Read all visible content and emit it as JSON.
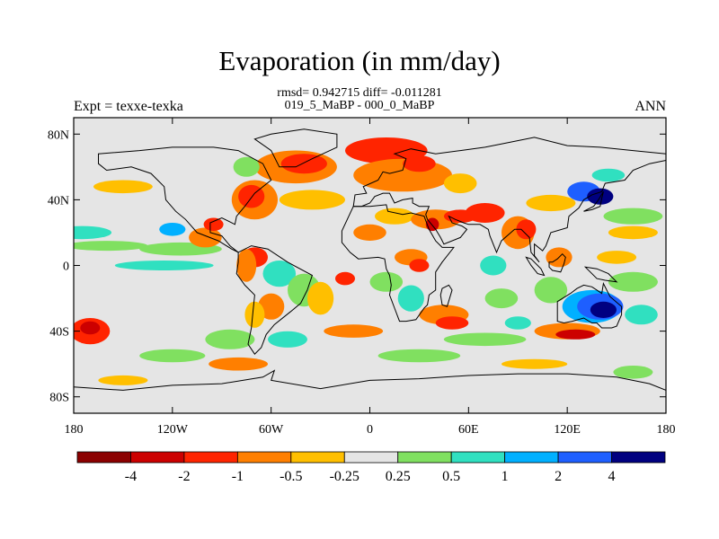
{
  "title": "Evaporation (in mm/day)",
  "stats_line": "rmsd= 0.942715 diff= -0.011281",
  "subtitle": "019_5_MaBP - 000_0_MaBP",
  "left_label": "Expt = texxe-texka",
  "right_label": "ANN",
  "chart_data": {
    "type": "heatmap",
    "projection": "cylindrical-equidistant",
    "xlim": [
      -180,
      180
    ],
    "ylim": [
      -90,
      90
    ],
    "x_ticks": [
      {
        "value": -180,
        "label": "180"
      },
      {
        "value": -120,
        "label": "120W"
      },
      {
        "value": -60,
        "label": "60W"
      },
      {
        "value": 0,
        "label": "0"
      },
      {
        "value": 60,
        "label": "60E"
      },
      {
        "value": 120,
        "label": "120E"
      },
      {
        "value": 180,
        "label": "180"
      }
    ],
    "y_ticks": [
      {
        "value": 80,
        "label": "80N"
      },
      {
        "value": 40,
        "label": "40N"
      },
      {
        "value": 0,
        "label": "0"
      },
      {
        "value": -40,
        "label": "40S"
      },
      {
        "value": -80,
        "label": "80S"
      }
    ],
    "colorbar": {
      "ticks": [
        "-4",
        "-2",
        "-1",
        "-0.5",
        "-0.25",
        "0.25",
        "0.5",
        "1",
        "2",
        "4"
      ],
      "colors": [
        "#8b0000",
        "#cc0000",
        "#ff2400",
        "#ff7f00",
        "#ffbf00",
        "#e5e5e5",
        "#80e060",
        "#30e0c0",
        "#00b0ff",
        "#1e5fff",
        "#000080"
      ]
    },
    "regions": [
      {
        "lon": -170,
        "lat": -40,
        "rx": 12,
        "ry": 8,
        "level": 2
      },
      {
        "lon": -170,
        "lat": -38,
        "rx": 6,
        "ry": 4,
        "level": 1
      },
      {
        "lon": -150,
        "lat": 48,
        "rx": 18,
        "ry": 4,
        "level": 4
      },
      {
        "lon": -175,
        "lat": 20,
        "rx": 18,
        "ry": 4,
        "level": 7
      },
      {
        "lon": -160,
        "lat": 12,
        "rx": 25,
        "ry": 3,
        "level": 6
      },
      {
        "lon": -115,
        "lat": 10,
        "rx": 25,
        "ry": 4,
        "level": 6
      },
      {
        "lon": -125,
        "lat": 0,
        "rx": 30,
        "ry": 3,
        "level": 7
      },
      {
        "lon": -120,
        "lat": 22,
        "rx": 8,
        "ry": 4,
        "level": 8
      },
      {
        "lon": -100,
        "lat": 17,
        "rx": 10,
        "ry": 6,
        "level": 3
      },
      {
        "lon": -95,
        "lat": 25,
        "rx": 6,
        "ry": 4,
        "level": 2
      },
      {
        "lon": -70,
        "lat": 40,
        "rx": 14,
        "ry": 12,
        "level": 3
      },
      {
        "lon": -72,
        "lat": 42,
        "rx": 8,
        "ry": 7,
        "level": 2
      },
      {
        "lon": -45,
        "lat": 60,
        "rx": 25,
        "ry": 10,
        "level": 3
      },
      {
        "lon": -40,
        "lat": 62,
        "rx": 14,
        "ry": 6,
        "level": 2
      },
      {
        "lon": -35,
        "lat": 40,
        "rx": 20,
        "ry": 6,
        "level": 4
      },
      {
        "lon": -75,
        "lat": 60,
        "rx": 8,
        "ry": 6,
        "level": 6
      },
      {
        "lon": -70,
        "lat": 5,
        "rx": 8,
        "ry": 6,
        "level": 2
      },
      {
        "lon": -75,
        "lat": 0,
        "rx": 6,
        "ry": 10,
        "level": 3
      },
      {
        "lon": -55,
        "lat": -5,
        "rx": 10,
        "ry": 8,
        "level": 7
      },
      {
        "lon": -40,
        "lat": -15,
        "rx": 10,
        "ry": 10,
        "level": 6
      },
      {
        "lon": -60,
        "lat": -25,
        "rx": 8,
        "ry": 8,
        "level": 3
      },
      {
        "lon": -70,
        "lat": -30,
        "rx": 6,
        "ry": 8,
        "level": 4
      },
      {
        "lon": -85,
        "lat": -45,
        "rx": 15,
        "ry": 6,
        "level": 6
      },
      {
        "lon": -50,
        "lat": -45,
        "rx": 12,
        "ry": 5,
        "level": 7
      },
      {
        "lon": -30,
        "lat": -20,
        "rx": 8,
        "ry": 10,
        "level": 4
      },
      {
        "lon": -15,
        "lat": -8,
        "rx": 6,
        "ry": 4,
        "level": 2
      },
      {
        "lon": -10,
        "lat": -40,
        "rx": 18,
        "ry": 4,
        "level": 3
      },
      {
        "lon": -120,
        "lat": -55,
        "rx": 20,
        "ry": 4,
        "level": 6
      },
      {
        "lon": -80,
        "lat": -60,
        "rx": 18,
        "ry": 4,
        "level": 3
      },
      {
        "lon": 10,
        "lat": 70,
        "rx": 25,
        "ry": 8,
        "level": 2
      },
      {
        "lon": 20,
        "lat": 55,
        "rx": 30,
        "ry": 10,
        "level": 3
      },
      {
        "lon": 30,
        "lat": 62,
        "rx": 10,
        "ry": 5,
        "level": 2
      },
      {
        "lon": 55,
        "lat": 50,
        "rx": 10,
        "ry": 6,
        "level": 4
      },
      {
        "lon": 15,
        "lat": 30,
        "rx": 12,
        "ry": 5,
        "level": 4
      },
      {
        "lon": 40,
        "lat": 28,
        "rx": 15,
        "ry": 6,
        "level": 3
      },
      {
        "lon": 38,
        "lat": 25,
        "rx": 4,
        "ry": 4,
        "level": 1
      },
      {
        "lon": 55,
        "lat": 30,
        "rx": 10,
        "ry": 4,
        "level": 2
      },
      {
        "lon": 70,
        "lat": 32,
        "rx": 12,
        "ry": 6,
        "level": 2
      },
      {
        "lon": 90,
        "lat": 20,
        "rx": 10,
        "ry": 10,
        "level": 3
      },
      {
        "lon": 95,
        "lat": 22,
        "rx": 6,
        "ry": 6,
        "level": 2
      },
      {
        "lon": 110,
        "lat": 38,
        "rx": 15,
        "ry": 5,
        "level": 4
      },
      {
        "lon": 130,
        "lat": 45,
        "rx": 10,
        "ry": 6,
        "level": 9
      },
      {
        "lon": 140,
        "lat": 42,
        "rx": 8,
        "ry": 5,
        "level": 10
      },
      {
        "lon": 145,
        "lat": 55,
        "rx": 10,
        "ry": 4,
        "level": 7
      },
      {
        "lon": 160,
        "lat": 30,
        "rx": 18,
        "ry": 5,
        "level": 6
      },
      {
        "lon": 160,
        "lat": 20,
        "rx": 15,
        "ry": 4,
        "level": 4
      },
      {
        "lon": 0,
        "lat": 20,
        "rx": 10,
        "ry": 5,
        "level": 3
      },
      {
        "lon": 25,
        "lat": 5,
        "rx": 10,
        "ry": 5,
        "level": 3
      },
      {
        "lon": 30,
        "lat": 0,
        "rx": 6,
        "ry": 4,
        "level": 2
      },
      {
        "lon": 10,
        "lat": -10,
        "rx": 10,
        "ry": 6,
        "level": 6
      },
      {
        "lon": 25,
        "lat": -20,
        "rx": 8,
        "ry": 8,
        "level": 7
      },
      {
        "lon": 45,
        "lat": -30,
        "rx": 15,
        "ry": 6,
        "level": 3
      },
      {
        "lon": 50,
        "lat": -35,
        "rx": 10,
        "ry": 4,
        "level": 2
      },
      {
        "lon": 75,
        "lat": 0,
        "rx": 8,
        "ry": 6,
        "level": 7
      },
      {
        "lon": 80,
        "lat": -20,
        "rx": 10,
        "ry": 6,
        "level": 6
      },
      {
        "lon": 70,
        "lat": -45,
        "rx": 25,
        "ry": 4,
        "level": 6
      },
      {
        "lon": 90,
        "lat": -35,
        "rx": 8,
        "ry": 4,
        "level": 7
      },
      {
        "lon": 120,
        "lat": -40,
        "rx": 20,
        "ry": 5,
        "level": 3
      },
      {
        "lon": 125,
        "lat": -42,
        "rx": 12,
        "ry": 3,
        "level": 1
      },
      {
        "lon": 135,
        "lat": -25,
        "rx": 18,
        "ry": 10,
        "level": 8
      },
      {
        "lon": 140,
        "lat": -25,
        "rx": 14,
        "ry": 8,
        "level": 9
      },
      {
        "lon": 142,
        "lat": -27,
        "rx": 8,
        "ry": 5,
        "level": 10
      },
      {
        "lon": 110,
        "lat": -15,
        "rx": 10,
        "ry": 8,
        "level": 6
      },
      {
        "lon": 115,
        "lat": 5,
        "rx": 8,
        "ry": 6,
        "level": 3
      },
      {
        "lon": 160,
        "lat": -10,
        "rx": 15,
        "ry": 6,
        "level": 6
      },
      {
        "lon": 165,
        "lat": -30,
        "rx": 10,
        "ry": 6,
        "level": 7
      },
      {
        "lon": 150,
        "lat": 5,
        "rx": 12,
        "ry": 4,
        "level": 4
      },
      {
        "lon": 30,
        "lat": -55,
        "rx": 25,
        "ry": 4,
        "level": 6
      },
      {
        "lon": 100,
        "lat": -60,
        "rx": 20,
        "ry": 3,
        "level": 4
      },
      {
        "lon": 160,
        "lat": -65,
        "rx": 12,
        "ry": 4,
        "level": 6
      },
      {
        "lon": -150,
        "lat": -70,
        "rx": 15,
        "ry": 3,
        "level": 4
      }
    ]
  }
}
